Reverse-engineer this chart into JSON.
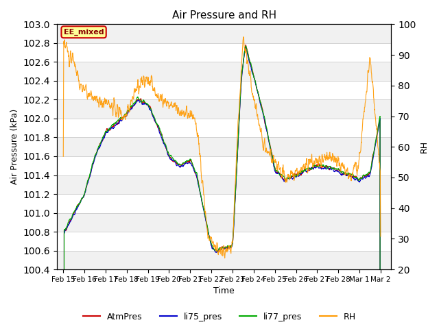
{
  "title": "Air Pressure and RH",
  "xlabel": "Time",
  "ylabel_left": "Air Pressure (kPa)",
  "ylabel_right": "RH",
  "ylim_left": [
    100.4,
    103.0
  ],
  "ylim_right": [
    20,
    100
  ],
  "annotation_text": "EE_mixed",
  "annotation_bg": "#ffff99",
  "annotation_border": "#cc0000",
  "legend_labels": [
    "AtmPres",
    "li75_pres",
    "li77_pres",
    "RH"
  ],
  "legend_colors": [
    "#cc0000",
    "#0000cc",
    "#00aa00",
    "#ff9900"
  ],
  "line_colors": {
    "AtmPres": "#cc0000",
    "li75_pres": "#0000cc",
    "li77_pres": "#00aa00",
    "RH": "#ff9900"
  },
  "xtick_labels": [
    "Feb 15",
    "Feb 16",
    "Feb 17",
    "Feb 18",
    "Feb 19",
    "Feb 20",
    "Feb 21",
    "Feb 22",
    "Feb 23",
    "Feb 24",
    "Feb 25",
    "Feb 26",
    "Feb 27",
    "Feb 28",
    "Mar 1",
    "Mar 2"
  ],
  "plot_bg": "#ffffff",
  "grid_color": "#cccccc",
  "band_color": "#e8e8e8"
}
